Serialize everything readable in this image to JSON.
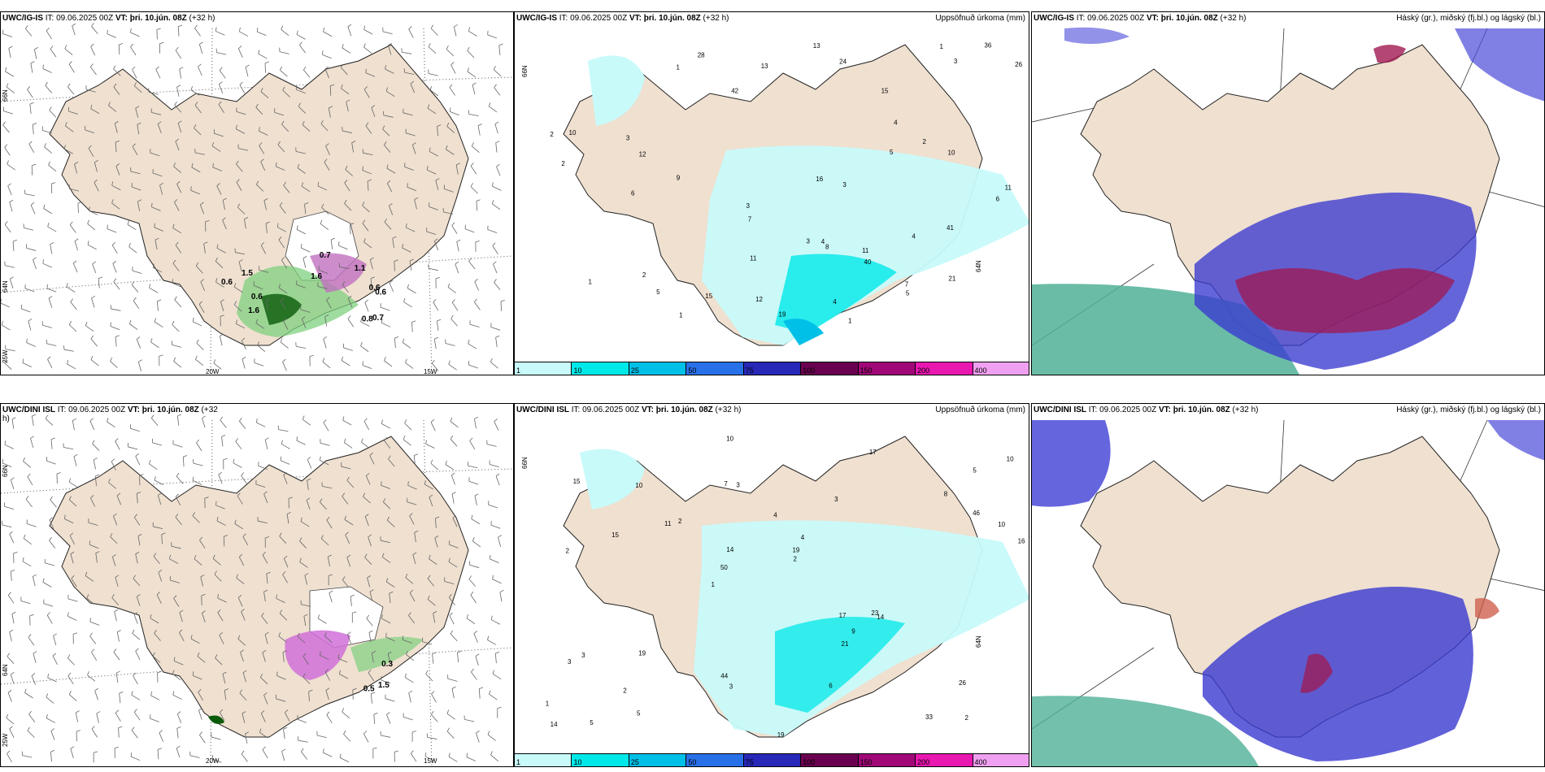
{
  "panels": {
    "tl": {
      "model": "UWC/IG-IS",
      "rest": " IT: 09.06.2025 00Z ",
      "vt_label": "VT:",
      "vt": " þri. 10.jún. 08Z",
      "lead": " (+32 h)",
      "right": ""
    },
    "tm": {
      "model": "UWC/IG-IS",
      "rest": " IT: 09.06.2025 00Z ",
      "vt_label": "VT:",
      "vt": " þri. 10.jún. 08Z",
      "lead": " (+32 h)",
      "right": "Uppsöfnuð úrkoma (mm)"
    },
    "tr": {
      "model": "UWC/IG-IS",
      "rest": " IT: 09.06.2025 00Z ",
      "vt_label": "VT:",
      "vt": " þri. 10.jún. 08Z",
      "lead": " (+32 h)",
      "right": "Háský (gr.), miðský (fj.bl.) og lágský (bl.)"
    },
    "bl": {
      "model": "UWC/DINI ISL",
      "rest": " IT: 09.06.2025 00Z ",
      "vt_label": "VT:",
      "vt": " þri. 10.jún. 08Z",
      "lead": " (+32",
      "lead2": "h)",
      "right": ""
    },
    "bm": {
      "model": "UWC/DINI ISL",
      "rest": " IT: 09.06.2025 00Z ",
      "vt_label": "VT:",
      "vt": " þri. 10.jún. 08Z",
      "lead": " (+32 h)",
      "right": "Uppsöfnuð úrkoma (mm)"
    },
    "br": {
      "model": "UWC/DINI ISL",
      "rest": " IT: 09.06.2025 00Z ",
      "vt_label": "VT:",
      "vt": " þri. 10.jún. 08Z",
      "lead": " (+32 h)",
      "right": "Háský (gr.), miðský (fj.bl.) og lágský (bl.)"
    }
  },
  "axes": {
    "lat66": "66N",
    "lat64": "64N",
    "lon25": "25W",
    "lon20": "20W",
    "lon15": "15W"
  },
  "colorbar": {
    "labels": [
      "1",
      "10",
      "25",
      "50",
      "75",
      "100",
      "150",
      "200",
      "400"
    ],
    "colors": [
      "#c8fafa",
      "#00e8e8",
      "#00c0e8",
      "#2870e8",
      "#2828b8",
      "#6a0050",
      "#a00878",
      "#e818b0",
      "#f0a0f0"
    ]
  },
  "precip_top": [
    "1",
    "1",
    "2",
    "3",
    "2",
    "4",
    "6",
    "9",
    "7",
    "5",
    "1",
    "2",
    "3",
    "4",
    "5",
    "1",
    "2",
    "3",
    "4",
    "10",
    "7",
    "8",
    "1",
    "5",
    "3",
    "4",
    "6",
    "12",
    "19",
    "42",
    "40",
    "36",
    "15",
    "15",
    "28",
    "12",
    "13",
    "10",
    "11",
    "11",
    "13",
    "16",
    "26",
    "21",
    "24",
    "41",
    "3",
    "11"
  ],
  "precip_bottom": [
    "2",
    "2",
    "5",
    "1",
    "3",
    "5",
    "7",
    "4",
    "3",
    "2",
    "1",
    "2",
    "3",
    "4",
    "14",
    "15",
    "10",
    "16",
    "17",
    "46",
    "50",
    "44",
    "14",
    "10",
    "17",
    "19",
    "33",
    "26",
    "23",
    "19",
    "11",
    "15",
    "21",
    "5",
    "10",
    "19",
    "14",
    "3",
    "2",
    "3",
    "8",
    "10",
    "9",
    "6"
  ],
  "wind_labels_top": [
    "1.5",
    "0.6",
    "1.6",
    "0.6",
    "0.6",
    "0.7",
    "1.6",
    "0.7",
    "0.8",
    "1.1",
    "0.6"
  ],
  "wind_labels_bottom": [
    "0.5",
    "1.5",
    "0.3"
  ],
  "colors": {
    "land": "#efe0d0",
    "coast": "#222222",
    "sea": "#ffffff"
  }
}
